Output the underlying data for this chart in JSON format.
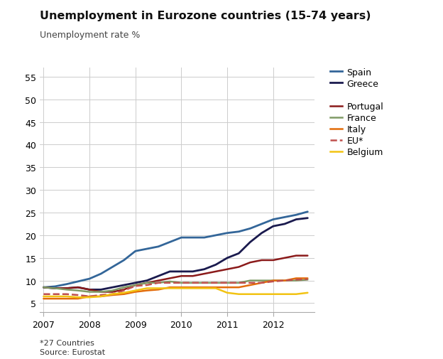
{
  "title": "Unemployment in Eurozone countries (15-74 years)",
  "ylabel": "Unemployment rate %",
  "footnote1": "*27 Countries",
  "footnote2": "Source: Eurostat",
  "ylim": [
    3,
    57
  ],
  "yticks": [
    5,
    10,
    15,
    20,
    25,
    30,
    35,
    40,
    45,
    50,
    55
  ],
  "x_labels": [
    "2007",
    "2008",
    "2009",
    "2010",
    "2011",
    "2012"
  ],
  "series": {
    "Spain": {
      "color": "#336699",
      "linestyle": "-",
      "linewidth": 2.0,
      "data_x": [
        2007.0,
        2007.25,
        2007.5,
        2007.75,
        2008.0,
        2008.25,
        2008.5,
        2008.75,
        2009.0,
        2009.25,
        2009.5,
        2009.75,
        2010.0,
        2010.25,
        2010.5,
        2010.75,
        2011.0,
        2011.25,
        2011.5,
        2011.75,
        2012.0,
        2012.25,
        2012.5,
        2012.75
      ],
      "data_y": [
        8.5,
        8.7,
        9.2,
        9.8,
        10.4,
        11.5,
        13.0,
        14.5,
        16.5,
        17.0,
        17.5,
        18.5,
        19.5,
        19.5,
        19.5,
        20.0,
        20.5,
        20.8,
        21.5,
        22.5,
        23.5,
        24.0,
        24.5,
        25.2
      ]
    },
    "Greece": {
      "color": "#1a1a4e",
      "linestyle": "-",
      "linewidth": 2.0,
      "data_x": [
        2007.0,
        2007.25,
        2007.5,
        2007.75,
        2008.0,
        2008.25,
        2008.5,
        2008.75,
        2009.0,
        2009.25,
        2009.5,
        2009.75,
        2010.0,
        2010.25,
        2010.5,
        2010.75,
        2011.0,
        2011.25,
        2011.5,
        2011.75,
        2012.0,
        2012.25,
        2012.5,
        2012.75
      ],
      "data_y": [
        8.5,
        8.3,
        8.3,
        8.5,
        8.0,
        8.0,
        8.5,
        9.0,
        9.5,
        10.0,
        11.0,
        12.0,
        12.0,
        12.0,
        12.5,
        13.5,
        15.0,
        16.0,
        18.5,
        20.5,
        22.0,
        22.5,
        23.5,
        23.8
      ]
    },
    "Portugal": {
      "color": "#8b1a1a",
      "linestyle": "-",
      "linewidth": 1.8,
      "data_x": [
        2007.0,
        2007.25,
        2007.5,
        2007.75,
        2008.0,
        2008.25,
        2008.5,
        2008.75,
        2009.0,
        2009.25,
        2009.5,
        2009.75,
        2010.0,
        2010.25,
        2010.5,
        2010.75,
        2011.0,
        2011.25,
        2011.5,
        2011.75,
        2012.0,
        2012.25,
        2012.5,
        2012.75
      ],
      "data_y": [
        8.5,
        8.3,
        8.3,
        8.5,
        8.0,
        7.5,
        7.5,
        8.0,
        9.0,
        9.5,
        10.0,
        10.5,
        11.0,
        11.0,
        11.5,
        12.0,
        12.5,
        13.0,
        14.0,
        14.5,
        14.5,
        15.0,
        15.5,
        15.5
      ]
    },
    "France": {
      "color": "#7f9a65",
      "linestyle": "-",
      "linewidth": 1.8,
      "data_x": [
        2007.0,
        2007.25,
        2007.5,
        2007.75,
        2008.0,
        2008.25,
        2008.5,
        2008.75,
        2009.0,
        2009.25,
        2009.5,
        2009.75,
        2010.0,
        2010.25,
        2010.5,
        2010.75,
        2011.0,
        2011.25,
        2011.5,
        2011.75,
        2012.0,
        2012.25,
        2012.5,
        2012.75
      ],
      "data_y": [
        8.5,
        8.3,
        8.0,
        7.8,
        7.5,
        7.5,
        7.8,
        8.5,
        9.0,
        9.5,
        9.5,
        9.8,
        9.5,
        9.5,
        9.5,
        9.5,
        9.5,
        9.5,
        10.0,
        10.0,
        10.0,
        10.0,
        10.0,
        10.2
      ]
    },
    "Italy": {
      "color": "#e36c09",
      "linestyle": "-",
      "linewidth": 1.8,
      "data_x": [
        2007.0,
        2007.25,
        2007.5,
        2007.75,
        2008.0,
        2008.25,
        2008.5,
        2008.75,
        2009.0,
        2009.25,
        2009.5,
        2009.75,
        2010.0,
        2010.25,
        2010.5,
        2010.75,
        2011.0,
        2011.25,
        2011.5,
        2011.75,
        2012.0,
        2012.25,
        2012.5,
        2012.75
      ],
      "data_y": [
        6.0,
        6.0,
        6.0,
        6.0,
        6.5,
        6.5,
        6.8,
        7.0,
        7.5,
        7.8,
        8.0,
        8.5,
        8.5,
        8.5,
        8.5,
        8.5,
        8.5,
        8.5,
        9.0,
        9.5,
        10.0,
        10.0,
        10.5,
        10.5
      ]
    },
    "EU*": {
      "color": "#c0504d",
      "linestyle": "--",
      "linewidth": 1.8,
      "data_x": [
        2007.0,
        2007.25,
        2007.5,
        2007.75,
        2008.0,
        2008.25,
        2008.5,
        2008.75,
        2009.0,
        2009.25,
        2009.5,
        2009.75,
        2010.0,
        2010.25,
        2010.5,
        2010.75,
        2011.0,
        2011.25,
        2011.5,
        2011.75,
        2012.0,
        2012.25,
        2012.5,
        2012.75
      ],
      "data_y": [
        7.0,
        7.0,
        7.0,
        6.8,
        6.5,
        6.8,
        7.0,
        7.8,
        8.8,
        9.0,
        9.5,
        9.5,
        9.5,
        9.5,
        9.5,
        9.5,
        9.5,
        9.5,
        9.5,
        9.5,
        9.8,
        10.0,
        10.2,
        10.3
      ]
    },
    "Belgium": {
      "color": "#f2c313",
      "linestyle": "-",
      "linewidth": 1.8,
      "data_x": [
        2007.0,
        2007.25,
        2007.5,
        2007.75,
        2008.0,
        2008.25,
        2008.5,
        2008.75,
        2009.0,
        2009.25,
        2009.5,
        2009.75,
        2010.0,
        2010.25,
        2010.5,
        2010.75,
        2011.0,
        2011.25,
        2011.5,
        2011.75,
        2012.0,
        2012.25,
        2012.5,
        2012.75
      ],
      "data_y": [
        6.5,
        6.5,
        6.5,
        6.3,
        6.3,
        6.5,
        7.0,
        7.3,
        7.8,
        8.3,
        8.3,
        8.3,
        8.3,
        8.3,
        8.3,
        8.3,
        7.3,
        7.0,
        7.0,
        7.0,
        7.0,
        7.0,
        7.0,
        7.3
      ]
    }
  },
  "background_color": "#ffffff",
  "grid_color": "#cccccc",
  "legend_order": [
    "Spain",
    "Greece",
    "Portugal",
    "France",
    "Italy",
    "EU*",
    "Belgium"
  ]
}
